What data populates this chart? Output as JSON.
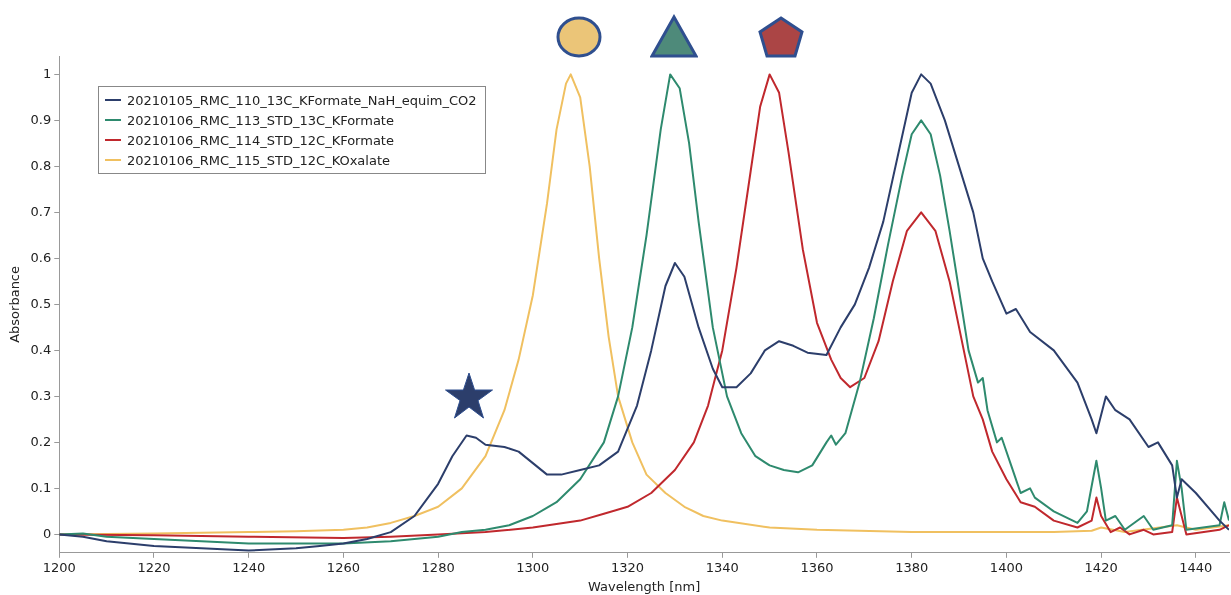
{
  "chart_data": {
    "type": "line",
    "xlabel": "Wavelength [nm]",
    "ylabel": "Absorbance",
    "xlim": [
      1200,
      1447
    ],
    "xticks": [
      1200,
      1220,
      1240,
      1260,
      1280,
      1300,
      1320,
      1340,
      1360,
      1380,
      1400,
      1420,
      1440
    ],
    "ylim": [
      -0.04,
      1.04
    ],
    "yticks": [
      0,
      0.1,
      0.2,
      0.3,
      0.4,
      0.5,
      0.6,
      0.7,
      0.8,
      0.9,
      1
    ],
    "grid": false,
    "legend": "top left",
    "marker": "none",
    "line_style": "solid",
    "series": [
      {
        "name": "20210105_RMC_110_13C_KFormate_NaH_equim_CO2",
        "color": "#2c3e6b",
        "x": [
          1200,
          1205,
          1210,
          1220,
          1230,
          1240,
          1250,
          1255,
          1260,
          1265,
          1270,
          1275,
          1280,
          1283,
          1286,
          1288,
          1290,
          1294,
          1297,
          1300,
          1303,
          1306,
          1310,
          1314,
          1318,
          1322,
          1325,
          1328,
          1330,
          1332,
          1335,
          1338,
          1340,
          1343,
          1346,
          1349,
          1352,
          1355,
          1358,
          1362,
          1365,
          1368,
          1371,
          1374,
          1377,
          1380,
          1382,
          1384,
          1387,
          1390,
          1393,
          1395,
          1397,
          1400,
          1402,
          1405,
          1410,
          1415,
          1418,
          1419,
          1421,
          1423,
          1426,
          1430,
          1432,
          1435,
          1436,
          1437,
          1440,
          1445,
          1447
        ],
        "values": [
          0,
          -0.005,
          -0.015,
          -0.025,
          -0.03,
          -0.035,
          -0.03,
          -0.025,
          -0.02,
          -0.01,
          0.005,
          0.04,
          0.11,
          0.17,
          0.215,
          0.21,
          0.195,
          0.19,
          0.18,
          0.155,
          0.13,
          0.13,
          0.14,
          0.15,
          0.18,
          0.28,
          0.4,
          0.54,
          0.59,
          0.56,
          0.45,
          0.36,
          0.32,
          0.32,
          0.35,
          0.4,
          0.42,
          0.41,
          0.395,
          0.39,
          0.45,
          0.5,
          0.58,
          0.68,
          0.82,
          0.96,
          1.0,
          0.98,
          0.9,
          0.8,
          0.7,
          0.6,
          0.55,
          0.48,
          0.49,
          0.44,
          0.4,
          0.33,
          0.25,
          0.22,
          0.3,
          0.27,
          0.25,
          0.19,
          0.2,
          0.15,
          0.08,
          0.12,
          0.09,
          0.03,
          0.01
        ]
      },
      {
        "name": "20210106_RMC_113_STD_13C_KFormate",
        "color": "#2e8a6e",
        "x": [
          1200,
          1205,
          1210,
          1220,
          1230,
          1240,
          1250,
          1260,
          1270,
          1280,
          1285,
          1290,
          1295,
          1300,
          1305,
          1310,
          1315,
          1318,
          1321,
          1324,
          1327,
          1329,
          1331,
          1333,
          1335,
          1338,
          1341,
          1344,
          1347,
          1350,
          1353,
          1356,
          1359,
          1362,
          1363,
          1364,
          1366,
          1369,
          1372,
          1375,
          1378,
          1380,
          1382,
          1384,
          1386,
          1388,
          1390,
          1392,
          1394,
          1395,
          1396,
          1398,
          1399,
          1401,
          1403,
          1405,
          1406,
          1410,
          1415,
          1417,
          1419,
          1420,
          1421,
          1423,
          1425,
          1429,
          1431,
          1435,
          1436,
          1437,
          1438,
          1445,
          1446,
          1447
        ],
        "values": [
          0,
          0.002,
          -0.005,
          -0.01,
          -0.015,
          -0.02,
          -0.02,
          -0.02,
          -0.015,
          -0.005,
          0.005,
          0.01,
          0.02,
          0.04,
          0.07,
          0.12,
          0.2,
          0.3,
          0.45,
          0.65,
          0.88,
          1.0,
          0.97,
          0.85,
          0.68,
          0.45,
          0.3,
          0.22,
          0.17,
          0.15,
          0.14,
          0.135,
          0.15,
          0.2,
          0.215,
          0.195,
          0.22,
          0.33,
          0.47,
          0.63,
          0.78,
          0.87,
          0.9,
          0.87,
          0.78,
          0.66,
          0.53,
          0.4,
          0.33,
          0.34,
          0.27,
          0.2,
          0.21,
          0.15,
          0.09,
          0.1,
          0.08,
          0.05,
          0.025,
          0.05,
          0.16,
          0.1,
          0.03,
          0.04,
          0.01,
          0.04,
          0.01,
          0.02,
          0.16,
          0.1,
          0.01,
          0.02,
          0.07,
          0.03
        ]
      },
      {
        "name": "20210106_RMC_114_STD_12C_KFormate",
        "color": "#c0282d",
        "x": [
          1200,
          1220,
          1240,
          1260,
          1270,
          1280,
          1290,
          1300,
          1310,
          1315,
          1320,
          1325,
          1330,
          1334,
          1337,
          1340,
          1343,
          1346,
          1348,
          1350,
          1352,
          1354,
          1357,
          1360,
          1363,
          1365,
          1367,
          1370,
          1373,
          1376,
          1379,
          1382,
          1385,
          1388,
          1391,
          1393,
          1395,
          1397,
          1400,
          1403,
          1406,
          1410,
          1415,
          1418,
          1419,
          1420,
          1422,
          1424,
          1426,
          1429,
          1431,
          1435,
          1436,
          1437,
          1438,
          1445,
          1447
        ],
        "values": [
          0,
          -0.002,
          -0.005,
          -0.008,
          -0.005,
          0,
          0.005,
          0.015,
          0.03,
          0.045,
          0.06,
          0.09,
          0.14,
          0.2,
          0.28,
          0.4,
          0.58,
          0.79,
          0.93,
          1.0,
          0.96,
          0.83,
          0.62,
          0.46,
          0.38,
          0.34,
          0.32,
          0.34,
          0.42,
          0.55,
          0.66,
          0.7,
          0.66,
          0.55,
          0.4,
          0.3,
          0.25,
          0.18,
          0.12,
          0.07,
          0.06,
          0.03,
          0.015,
          0.03,
          0.08,
          0.04,
          0.005,
          0.015,
          0,
          0.01,
          0,
          0.005,
          0.08,
          0.04,
          0,
          0.01,
          0.02
        ]
      },
      {
        "name": "20210106_RMC_115_STD_12C_KOxalate",
        "color": "#f0c060",
        "x": [
          1200,
          1220,
          1240,
          1250,
          1260,
          1265,
          1270,
          1275,
          1280,
          1285,
          1290,
          1294,
          1297,
          1300,
          1303,
          1305,
          1307,
          1308,
          1310,
          1312,
          1314,
          1316,
          1318,
          1321,
          1324,
          1328,
          1332,
          1336,
          1340,
          1350,
          1360,
          1380,
          1400,
          1410,
          1418,
          1420,
          1425,
          1436,
          1440,
          1447
        ],
        "values": [
          0,
          0.002,
          0.005,
          0.007,
          0.01,
          0.015,
          0.025,
          0.04,
          0.06,
          0.1,
          0.17,
          0.27,
          0.38,
          0.52,
          0.72,
          0.88,
          0.98,
          1.0,
          0.95,
          0.8,
          0.6,
          0.43,
          0.3,
          0.2,
          0.13,
          0.09,
          0.06,
          0.04,
          0.03,
          0.015,
          0.01,
          0.005,
          0.005,
          0.005,
          0.008,
          0.015,
          0.005,
          0.02,
          0.01,
          0.02
        ]
      }
    ]
  }
}
